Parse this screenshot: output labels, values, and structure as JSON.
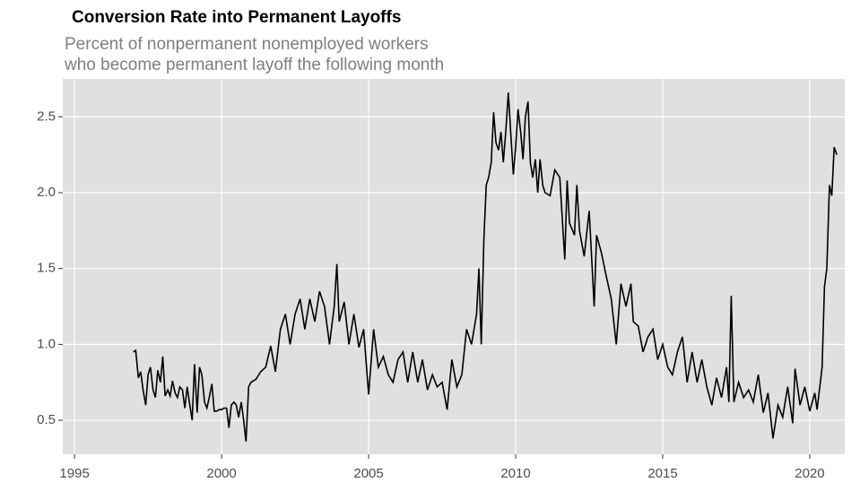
{
  "chart_data": {
    "type": "line",
    "title": "Conversion Rate into Permanent Layoffs",
    "subtitle": [
      "Percent of nonpermanent nonemployed workers",
      "who become permanent layoff the following month"
    ],
    "color": "#000000",
    "grid": true,
    "xlim": [
      1994.6,
      2021.19
    ],
    "ylim": [
      0.276,
      2.75
    ],
    "xticks": [
      1995,
      2000,
      2005,
      2010,
      2015,
      2020
    ],
    "yticks": [
      {
        "value": 0.5,
        "label": "0.5"
      },
      {
        "value": 1.0,
        "label": "1.0"
      },
      {
        "value": 1.5,
        "label": "1.5"
      },
      {
        "value": 2.0,
        "label": "2.0"
      },
      {
        "value": 2.5,
        "label": "2.5"
      }
    ],
    "x": [
      1997.0,
      1997.08,
      1997.17,
      1997.25,
      1997.33,
      1997.42,
      1997.5,
      1997.58,
      1997.67,
      1997.75,
      1997.83,
      1997.92,
      1998.0,
      1998.08,
      1998.17,
      1998.25,
      1998.33,
      1998.42,
      1998.5,
      1998.58,
      1998.67,
      1998.75,
      1998.83,
      1998.92,
      1999.0,
      1999.08,
      1999.17,
      1999.25,
      1999.33,
      1999.42,
      1999.5,
      1999.58,
      1999.67,
      1999.75,
      1999.83,
      1999.92,
      2000.0,
      2000.08,
      2000.17,
      2000.25,
      2000.33,
      2000.42,
      2000.5,
      2000.58,
      2000.67,
      2000.75,
      2000.83,
      2000.92,
      2001.0,
      2001.17,
      2001.33,
      2001.5,
      2001.67,
      2001.83,
      2002.0,
      2002.17,
      2002.33,
      2002.5,
      2002.67,
      2002.83,
      2003.0,
      2003.17,
      2003.33,
      2003.5,
      2003.67,
      2003.83,
      2003.92,
      2004.0,
      2004.17,
      2004.33,
      2004.5,
      2004.67,
      2004.83,
      2005.0,
      2005.17,
      2005.33,
      2005.5,
      2005.67,
      2005.83,
      2006.0,
      2006.17,
      2006.33,
      2006.5,
      2006.67,
      2006.83,
      2007.0,
      2007.17,
      2007.33,
      2007.5,
      2007.67,
      2007.83,
      2008.0,
      2008.17,
      2008.33,
      2008.5,
      2008.67,
      2008.75,
      2008.83,
      2008.92,
      2009.0,
      2009.08,
      2009.17,
      2009.25,
      2009.33,
      2009.42,
      2009.5,
      2009.58,
      2009.67,
      2009.75,
      2009.83,
      2009.92,
      2010.0,
      2010.08,
      2010.17,
      2010.25,
      2010.33,
      2010.42,
      2010.5,
      2010.58,
      2010.67,
      2010.75,
      2010.83,
      2010.92,
      2011.0,
      2011.17,
      2011.33,
      2011.5,
      2011.67,
      2011.75,
      2011.83,
      2012.0,
      2012.08,
      2012.17,
      2012.33,
      2012.5,
      2012.67,
      2012.75,
      2012.92,
      2013.08,
      2013.25,
      2013.42,
      2013.58,
      2013.75,
      2013.92,
      2014.0,
      2014.17,
      2014.33,
      2014.5,
      2014.67,
      2014.83,
      2015.0,
      2015.17,
      2015.33,
      2015.5,
      2015.67,
      2015.83,
      2016.0,
      2016.17,
      2016.33,
      2016.5,
      2016.67,
      2016.83,
      2017.0,
      2017.17,
      2017.25,
      2017.33,
      2017.42,
      2017.58,
      2017.75,
      2017.92,
      2018.08,
      2018.25,
      2018.42,
      2018.58,
      2018.75,
      2018.92,
      2019.08,
      2019.25,
      2019.42,
      2019.5,
      2019.67,
      2019.83,
      2020.0,
      2020.17,
      2020.25,
      2020.42,
      2020.5,
      2020.58,
      2020.67,
      2020.75,
      2020.83,
      2020.92
    ],
    "values": [
      0.95,
      0.96,
      0.78,
      0.82,
      0.7,
      0.6,
      0.8,
      0.85,
      0.7,
      0.65,
      0.83,
      0.75,
      0.92,
      0.66,
      0.7,
      0.66,
      0.76,
      0.68,
      0.65,
      0.72,
      0.7,
      0.58,
      0.72,
      0.6,
      0.5,
      0.87,
      0.55,
      0.85,
      0.8,
      0.62,
      0.58,
      0.65,
      0.74,
      0.56,
      0.56,
      0.57,
      0.57,
      0.58,
      0.58,
      0.45,
      0.6,
      0.62,
      0.6,
      0.52,
      0.62,
      0.5,
      0.36,
      0.72,
      0.75,
      0.77,
      0.82,
      0.85,
      0.99,
      0.82,
      1.1,
      1.2,
      1.0,
      1.2,
      1.3,
      1.1,
      1.3,
      1.15,
      1.35,
      1.25,
      1.0,
      1.25,
      1.53,
      1.15,
      1.28,
      1.0,
      1.2,
      0.98,
      1.1,
      0.67,
      1.1,
      0.85,
      0.92,
      0.8,
      0.75,
      0.9,
      0.95,
      0.75,
      0.95,
      0.75,
      0.9,
      0.7,
      0.8,
      0.72,
      0.75,
      0.57,
      0.9,
      0.72,
      0.8,
      1.1,
      1.0,
      1.2,
      1.5,
      1.0,
      1.7,
      2.05,
      2.1,
      2.2,
      2.53,
      2.33,
      2.28,
      2.4,
      2.2,
      2.42,
      2.66,
      2.4,
      2.12,
      2.3,
      2.55,
      2.4,
      2.22,
      2.5,
      2.6,
      2.2,
      2.1,
      2.22,
      2.0,
      2.22,
      2.05,
      2.0,
      1.98,
      2.15,
      2.1,
      1.56,
      2.08,
      1.8,
      1.72,
      2.05,
      1.75,
      1.58,
      1.88,
      1.25,
      1.72,
      1.6,
      1.45,
      1.3,
      1.0,
      1.4,
      1.25,
      1.4,
      1.15,
      1.12,
      0.95,
      1.05,
      1.1,
      0.9,
      1.0,
      0.85,
      0.8,
      0.95,
      1.05,
      0.75,
      0.95,
      0.75,
      0.9,
      0.72,
      0.6,
      0.78,
      0.65,
      0.85,
      0.62,
      1.32,
      0.62,
      0.75,
      0.65,
      0.7,
      0.62,
      0.8,
      0.55,
      0.68,
      0.38,
      0.6,
      0.52,
      0.72,
      0.48,
      0.84,
      0.6,
      0.72,
      0.56,
      0.68,
      0.57,
      0.85,
      1.38,
      1.5,
      2.05,
      1.98,
      2.3,
      2.25
    ]
  }
}
